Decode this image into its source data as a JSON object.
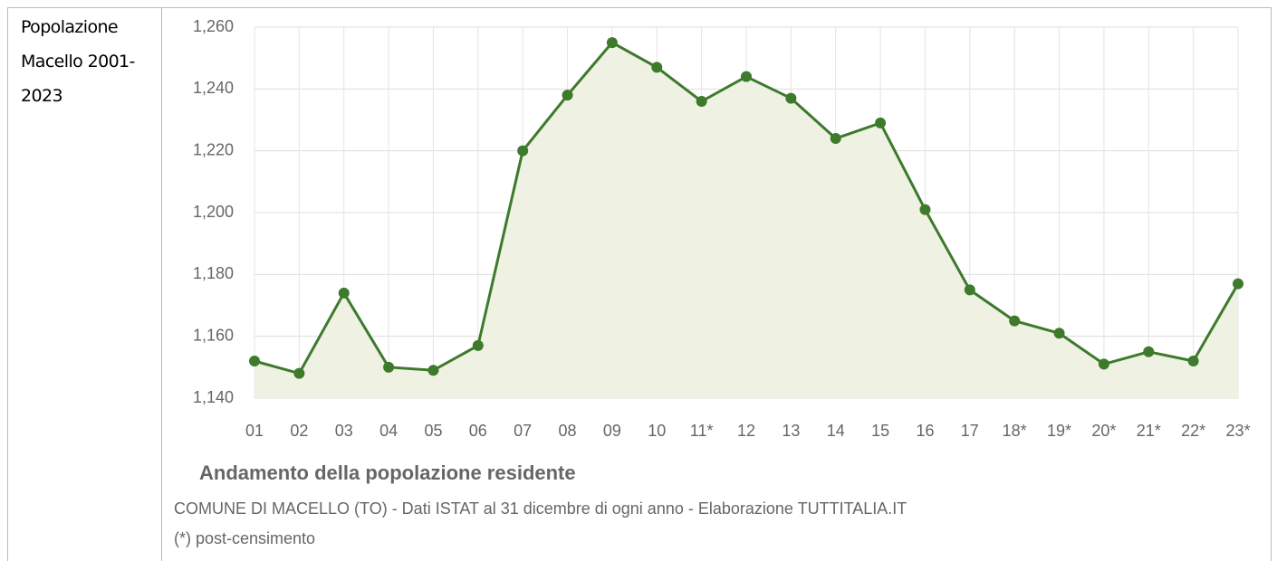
{
  "row_label": "Popolazione Macello 2001-2023",
  "chart_data": {
    "type": "line",
    "title": "Andamento della popolazione residente",
    "subtitle": "COMUNE DI MACELLO (TO) - Dati ISTAT al 31 dicembre di ogni anno - Elaborazione TUTTITALIA.IT",
    "note": "(*) post-censimento",
    "categories": [
      "01",
      "02",
      "03",
      "04",
      "05",
      "06",
      "07",
      "08",
      "09",
      "10",
      "11*",
      "12",
      "13",
      "14",
      "15",
      "16",
      "17",
      "18*",
      "19*",
      "20*",
      "21*",
      "22*",
      "23*"
    ],
    "series": [
      {
        "name": "Popolazione",
        "color": "#3d7a2c",
        "fill": "#eff1e3",
        "values": [
          1152,
          1148,
          1174,
          1150,
          1149,
          1157,
          1220,
          1238,
          1255,
          1247,
          1236,
          1244,
          1237,
          1224,
          1229,
          1201,
          1175,
          1165,
          1161,
          1151,
          1155,
          1152,
          1177
        ]
      }
    ],
    "ylim": [
      1140,
      1260
    ],
    "yticks": [
      {
        "value": 1140,
        "label": "1,140"
      },
      {
        "value": 1160,
        "label": "1,160"
      },
      {
        "value": 1180,
        "label": "1,180"
      },
      {
        "value": 1200,
        "label": "1,200"
      },
      {
        "value": 1220,
        "label": "1,220"
      },
      {
        "value": 1240,
        "label": "1,240"
      },
      {
        "value": 1260,
        "label": "1,260"
      }
    ],
    "grid": true
  }
}
